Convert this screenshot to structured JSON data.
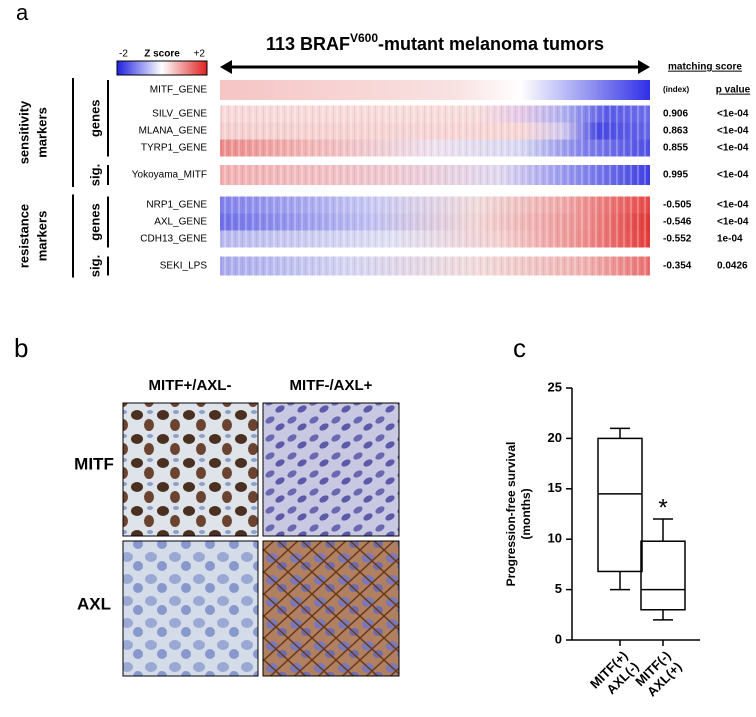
{
  "panel_a": {
    "letter": "a",
    "title": {
      "prefix": "113 BRAF",
      "sup": "V600",
      "suffix": "-mutant melanoma tumors"
    },
    "colorbar": {
      "label": "Z score",
      "min": -2,
      "max": {
        "value": 2,
        "label": "+2"
      }
    },
    "score_header": "matching score",
    "p_header": "p value",
    "groups": [
      {
        "label": [
          "sensitivity",
          "markers"
        ],
        "subgroups": [
          {
            "label": "genes",
            "rows": [
              {
                "name": "MITF_GENE",
                "score": "(index)",
                "p": null
              },
              {
                "name": "SILV_GENE",
                "score": 0.906,
                "p": "<1e-04"
              },
              {
                "name": "MLANA_GENE",
                "score": 0.863,
                "p": "<1e-04"
              },
              {
                "name": "TYRP1_GENE",
                "score": 0.855,
                "p": "<1e-04"
              }
            ]
          },
          {
            "label": "sig.",
            "rows": [
              {
                "name": "Yokoyama_MITF",
                "score": 0.995,
                "p": "<1e-04"
              }
            ]
          }
        ]
      },
      {
        "label": [
          "resistance",
          "markers"
        ],
        "subgroups": [
          {
            "label": "genes",
            "rows": [
              {
                "name": "NRP1_GENE",
                "score": -0.505,
                "p": "<1e-04"
              },
              {
                "name": "AXL_GENE",
                "score": -0.546,
                "p": "<1e-04"
              },
              {
                "name": "CDH13_GENE",
                "score": -0.552,
                "p": "1e-04"
              }
            ]
          },
          {
            "label": "sig.",
            "rows": [
              {
                "name": "SEKI_LPS",
                "score": -0.354,
                "p": "0.0426"
              }
            ]
          }
        ]
      }
    ]
  },
  "panel_b": {
    "letter": "b",
    "columns": [
      "MITF+/AXL-",
      "MITF-/AXL+"
    ],
    "rows": [
      "MITF",
      "AXL"
    ]
  },
  "chart_data": {
    "type": "box",
    "letter": "c",
    "ylabel": [
      "Progression-free survival",
      "(months)"
    ],
    "categories": [
      [
        "MITF(+)",
        "AXL(-)"
      ],
      [
        "MITF(-)",
        "AXL(+)"
      ]
    ],
    "boxes": [
      {
        "min": 5,
        "q1": 6.8,
        "median": 14.5,
        "q3": 20,
        "max": 21
      },
      {
        "min": 2,
        "q1": 3,
        "median": 5,
        "q3": 9.8,
        "max": 12
      }
    ],
    "annotations": [
      null,
      "*"
    ],
    "color": "#000000",
    "ylim": [
      0,
      25
    ],
    "yticks": [
      0,
      5,
      10,
      15,
      20,
      25
    ]
  }
}
